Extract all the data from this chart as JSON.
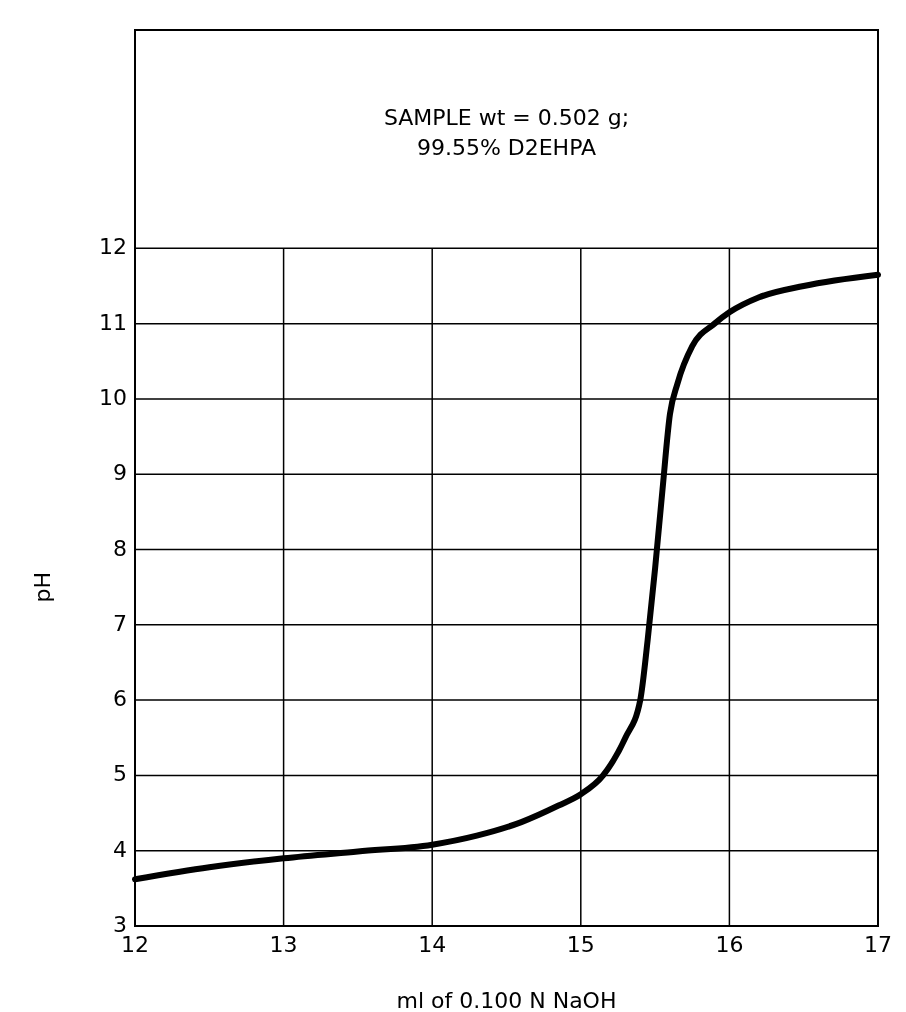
{
  "chart_data": {
    "type": "line",
    "xlabel": "ml of 0.100 N NaOH",
    "ylabel": "pH",
    "annotations": [
      "SAMPLE wt = 0.502 g;\n99.55% D2EHPA"
    ],
    "x": [
      12,
      12.5,
      13,
      13.5,
      14,
      14.3,
      14.6,
      14.85,
      15,
      15.15,
      15.3,
      15.4,
      15.45,
      15.5,
      15.55,
      15.6,
      15.65,
      15.75,
      15.9,
      16,
      16.2,
      16.5,
      17
    ],
    "series": [
      {
        "color": "#000000",
        "values": [
          3.62,
          3.78,
          3.9,
          3.99,
          4.08,
          4.2,
          4.38,
          4.6,
          4.75,
          5.0,
          5.5,
          6.0,
          6.8,
          7.75,
          8.8,
          9.8,
          10.2,
          10.7,
          11.0,
          11.15,
          11.35,
          11.5,
          11.65
        ]
      }
    ],
    "xlim": [
      12,
      17
    ],
    "xticks": [
      12,
      13,
      14,
      15,
      16,
      17
    ],
    "ylim": [
      3,
      14.9
    ],
    "yticks": [
      3,
      4,
      5,
      6,
      7,
      8,
      9,
      10,
      11,
      12
    ],
    "grid": true,
    "marker": "none",
    "line_style": "solid"
  }
}
